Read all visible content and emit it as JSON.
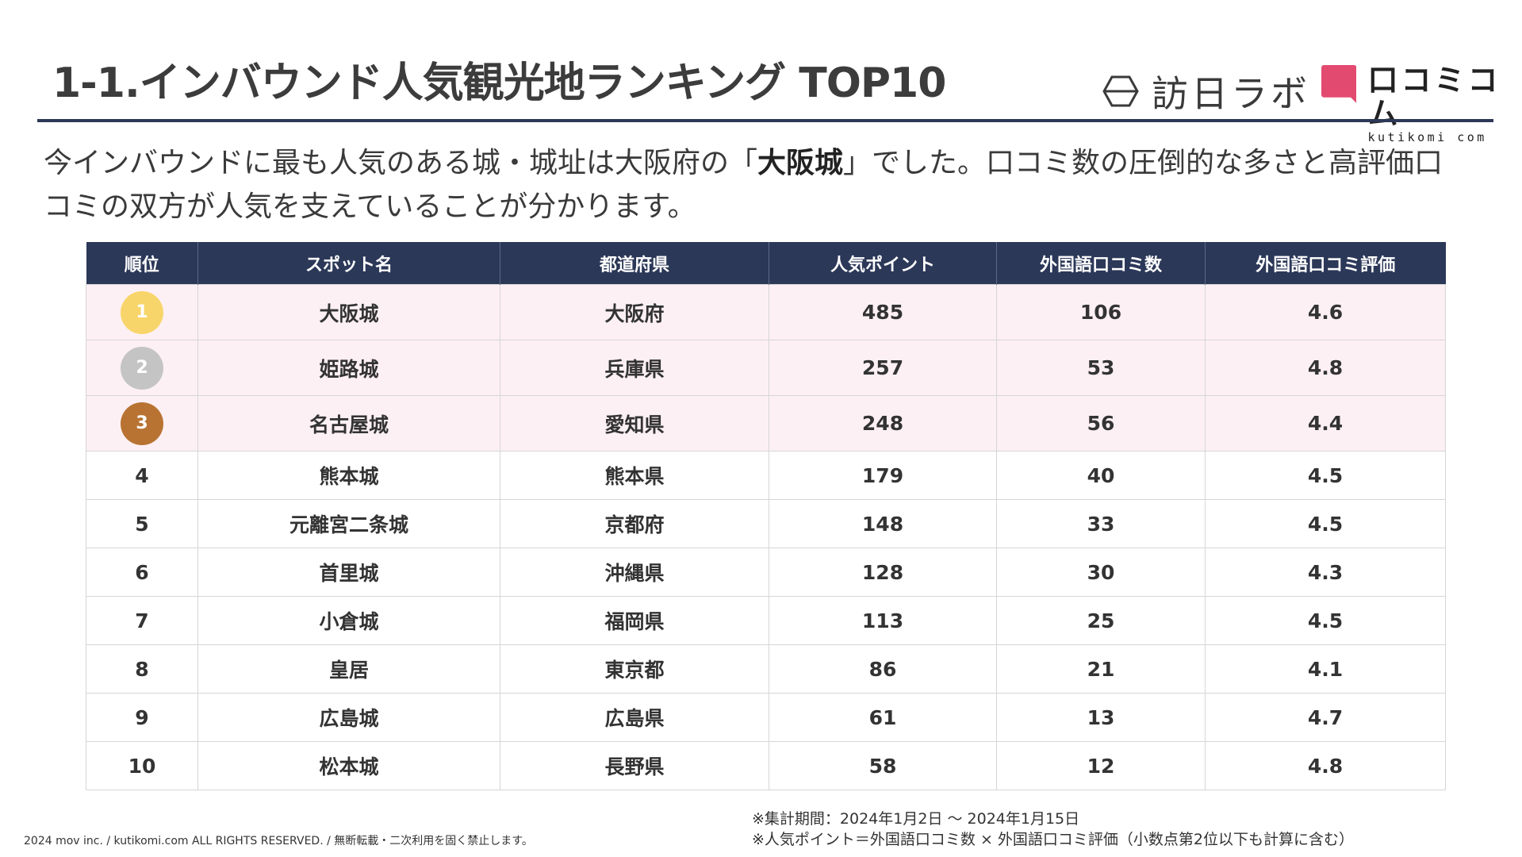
{
  "title": "1-1.インバウンド人気観光地ランキング TOP10",
  "logos": {
    "homon": "訪日ラボ",
    "kutikomi_main": "口コミコム",
    "kutikomi_sub": "kutikomi com",
    "colors": {
      "kutikomi_pink": "#e34a6f",
      "navy": "#2c3858"
    }
  },
  "lead": {
    "before": "今インバウンドに最も人気のある城・城址は大阪府の「",
    "highlight": "大阪城",
    "after": "」でした。口コミ数の圧倒的な多さと高評価口コミの双方が人気を支えていることが分かります。"
  },
  "table": {
    "headers": [
      "順位",
      "スポット名",
      "都道府県",
      "人気ポイント",
      "外国語口コミ数",
      "外国語口コミ評価"
    ],
    "rows": [
      {
        "rank": "1",
        "spot": "大阪城",
        "pref": "大阪府",
        "points": "485",
        "reviews": "106",
        "rating": "4.6"
      },
      {
        "rank": "2",
        "spot": "姫路城",
        "pref": "兵庫県",
        "points": "257",
        "reviews": "53",
        "rating": "4.8"
      },
      {
        "rank": "3",
        "spot": "名古屋城",
        "pref": "愛知県",
        "points": "248",
        "reviews": "56",
        "rating": "4.4"
      },
      {
        "rank": "4",
        "spot": "熊本城",
        "pref": "熊本県",
        "points": "179",
        "reviews": "40",
        "rating": "4.5"
      },
      {
        "rank": "5",
        "spot": "元離宮二条城",
        "pref": "京都府",
        "points": "148",
        "reviews": "33",
        "rating": "4.5"
      },
      {
        "rank": "6",
        "spot": "首里城",
        "pref": "沖縄県",
        "points": "128",
        "reviews": "30",
        "rating": "4.3"
      },
      {
        "rank": "7",
        "spot": "小倉城",
        "pref": "福岡県",
        "points": "113",
        "reviews": "25",
        "rating": "4.5"
      },
      {
        "rank": "8",
        "spot": "皇居",
        "pref": "東京都",
        "points": "86",
        "reviews": "21",
        "rating": "4.1"
      },
      {
        "rank": "9",
        "spot": "広島城",
        "pref": "広島県",
        "points": "61",
        "reviews": "13",
        "rating": "4.7"
      },
      {
        "rank": "10",
        "spot": "松本城",
        "pref": "長野県",
        "points": "58",
        "reviews": "12",
        "rating": "4.8"
      }
    ],
    "medal_colors": [
      "#f8d56a",
      "#c4c4c4",
      "#b87333"
    ]
  },
  "footer": {
    "copyright": "2024 mov inc. / kutikomi.com ALL RIGHTS RESERVED. / 無断転載・二次利用を固く禁止します。",
    "note1": "※集計期間：2024年1月2日 〜 2024年1月15日",
    "note2": "※人気ポイント＝外国語口コミ数 × 外国語口コミ評価（小数点第2位以下も計算に含む）"
  }
}
